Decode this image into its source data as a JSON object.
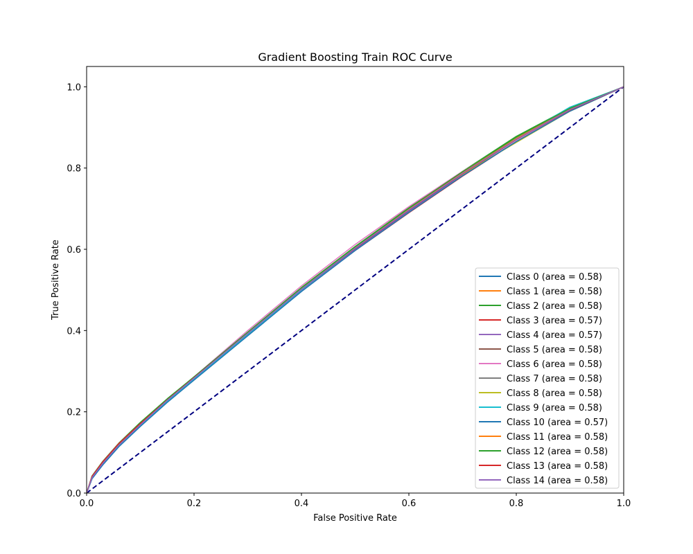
{
  "chart_data": {
    "type": "line",
    "title": "Gradient Boosting Train ROC Curve",
    "xlabel": "False Positive Rate",
    "ylabel": "True Positive Rate",
    "xlim": [
      0.0,
      1.0
    ],
    "ylim": [
      0.0,
      1.05
    ],
    "xticks": [
      "0.0",
      "0.2",
      "0.4",
      "0.6",
      "0.8",
      "1.0"
    ],
    "yticks": [
      "0.0",
      "0.2",
      "0.4",
      "0.6",
      "0.8",
      "1.0"
    ],
    "grid": false,
    "legend_position": "lower-right",
    "x": [
      0.0,
      0.01,
      0.03,
      0.06,
      0.1,
      0.15,
      0.2,
      0.3,
      0.4,
      0.5,
      0.6,
      0.7,
      0.8,
      0.9,
      1.0
    ],
    "series": [
      {
        "name": "Class 0 (area = 0.58)",
        "color": "#1f77b4",
        "values": [
          0.0,
          0.035,
          0.07,
          0.115,
          0.165,
          0.225,
          0.28,
          0.39,
          0.5,
          0.6,
          0.695,
          0.785,
          0.87,
          0.945,
          1.0
        ]
      },
      {
        "name": "Class 1 (area = 0.58)",
        "color": "#ff7f0e",
        "values": [
          0.0,
          0.04,
          0.075,
          0.12,
          0.17,
          0.23,
          0.285,
          0.395,
          0.505,
          0.605,
          0.7,
          0.79,
          0.875,
          0.945,
          1.0
        ]
      },
      {
        "name": "Class 2 (area = 0.58)",
        "color": "#2ca02c",
        "values": [
          0.0,
          0.042,
          0.078,
          0.123,
          0.174,
          0.232,
          0.286,
          0.396,
          0.506,
          0.607,
          0.702,
          0.792,
          0.878,
          0.948,
          1.0
        ]
      },
      {
        "name": "Class 3 (area = 0.57)",
        "color": "#d62728",
        "values": [
          0.0,
          0.04,
          0.076,
          0.12,
          0.168,
          0.225,
          0.28,
          0.39,
          0.497,
          0.597,
          0.69,
          0.78,
          0.865,
          0.94,
          1.0
        ]
      },
      {
        "name": "Class 4 (area = 0.57)",
        "color": "#9467bd",
        "values": [
          0.0,
          0.036,
          0.071,
          0.116,
          0.165,
          0.224,
          0.279,
          0.388,
          0.497,
          0.598,
          0.692,
          0.782,
          0.866,
          0.941,
          1.0
        ]
      },
      {
        "name": "Class 5 (area = 0.58)",
        "color": "#8c564b",
        "values": [
          0.0,
          0.039,
          0.074,
          0.119,
          0.17,
          0.229,
          0.284,
          0.395,
          0.504,
          0.604,
          0.698,
          0.788,
          0.872,
          0.945,
          1.0
        ]
      },
      {
        "name": "Class 6 (area = 0.58)",
        "color": "#e377c2",
        "values": [
          0.0,
          0.037,
          0.072,
          0.118,
          0.169,
          0.229,
          0.286,
          0.4,
          0.51,
          0.612,
          0.705,
          0.792,
          0.874,
          0.945,
          1.0
        ]
      },
      {
        "name": "Class 7 (area = 0.58)",
        "color": "#7f7f7f",
        "values": [
          0.0,
          0.038,
          0.073,
          0.118,
          0.168,
          0.228,
          0.283,
          0.393,
          0.502,
          0.603,
          0.697,
          0.787,
          0.871,
          0.944,
          1.0
        ]
      },
      {
        "name": "Class 8 (area = 0.58)",
        "color": "#bcbd22",
        "values": [
          0.0,
          0.038,
          0.073,
          0.119,
          0.17,
          0.23,
          0.285,
          0.395,
          0.505,
          0.606,
          0.7,
          0.785,
          0.863,
          0.94,
          1.0
        ]
      },
      {
        "name": "Class 9 (area = 0.58)",
        "color": "#17becf",
        "values": [
          0.0,
          0.036,
          0.07,
          0.115,
          0.166,
          0.226,
          0.281,
          0.39,
          0.5,
          0.602,
          0.698,
          0.788,
          0.873,
          0.95,
          1.0
        ]
      },
      {
        "name": "Class 10 (area = 0.57)",
        "color": "#1f77b4",
        "values": [
          0.0,
          0.035,
          0.069,
          0.114,
          0.164,
          0.223,
          0.278,
          0.387,
          0.496,
          0.597,
          0.691,
          0.781,
          0.865,
          0.94,
          1.0
        ]
      },
      {
        "name": "Class 11 (area = 0.58)",
        "color": "#ff7f0e",
        "values": [
          0.0,
          0.039,
          0.074,
          0.12,
          0.171,
          0.23,
          0.285,
          0.395,
          0.504,
          0.605,
          0.699,
          0.789,
          0.873,
          0.946,
          1.0
        ]
      },
      {
        "name": "Class 12 (area = 0.58)",
        "color": "#2ca02c",
        "values": [
          0.0,
          0.04,
          0.076,
          0.121,
          0.172,
          0.231,
          0.286,
          0.396,
          0.505,
          0.606,
          0.701,
          0.791,
          0.876,
          0.947,
          1.0
        ]
      },
      {
        "name": "Class 13 (area = 0.58)",
        "color": "#d62728",
        "values": [
          0.0,
          0.041,
          0.077,
          0.122,
          0.171,
          0.229,
          0.284,
          0.393,
          0.502,
          0.602,
          0.696,
          0.786,
          0.87,
          0.943,
          1.0
        ]
      },
      {
        "name": "Class 14 (area = 0.58)",
        "color": "#9467bd",
        "values": [
          0.0,
          0.038,
          0.073,
          0.118,
          0.168,
          0.228,
          0.283,
          0.393,
          0.502,
          0.603,
          0.697,
          0.787,
          0.871,
          0.944,
          1.0
        ]
      }
    ],
    "reference_line": {
      "x": [
        0.0,
        1.0
      ],
      "y": [
        0.0,
        1.0
      ],
      "color": "#000080",
      "style": "dashed"
    }
  }
}
